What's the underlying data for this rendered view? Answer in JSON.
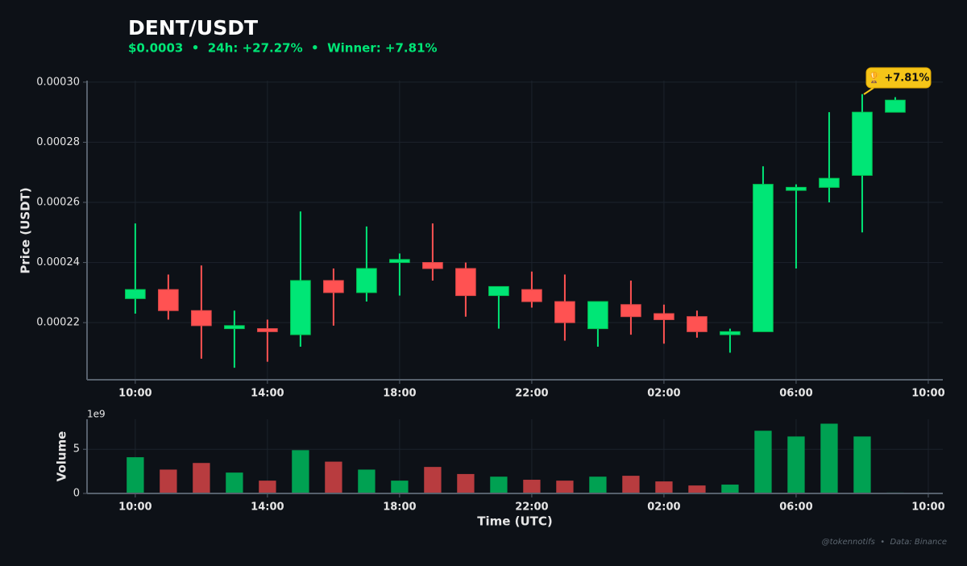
{
  "chart_data": [
    {
      "type": "candlestick",
      "title": "DENT/USDT",
      "subtitle": "$0.0003  •  24h: +27.27%  •  Winner: +7.81%",
      "y_label": "Price (USDT)",
      "annotation": "🏆 +7.81%",
      "x": [
        0,
        1,
        2,
        3,
        4,
        5,
        6,
        7,
        8,
        9,
        10,
        11,
        12,
        13,
        14,
        15,
        16,
        17,
        18,
        19,
        20,
        21,
        22,
        23
      ],
      "open": [
        0.000228,
        0.000231,
        0.000224,
        0.000218,
        0.000218,
        0.000216,
        0.000234,
        0.00023,
        0.00024,
        0.00024,
        0.000238,
        0.000229,
        0.000231,
        0.000227,
        0.000218,
        0.000226,
        0.000223,
        0.000222,
        0.000216,
        0.000217,
        0.000264,
        0.000265,
        0.000269,
        0.00029
      ],
      "high": [
        0.000253,
        0.000236,
        0.000239,
        0.000224,
        0.000221,
        0.000257,
        0.000238,
        0.000252,
        0.000243,
        0.000253,
        0.00024,
        0.000232,
        0.000237,
        0.000236,
        0.000227,
        0.000234,
        0.000226,
        0.000224,
        0.000218,
        0.000272,
        0.000266,
        0.00029,
        0.000296,
        0.000295
      ],
      "low": [
        0.000223,
        0.000221,
        0.000208,
        0.000205,
        0.000207,
        0.000212,
        0.000219,
        0.000227,
        0.000229,
        0.000234,
        0.000222,
        0.000218,
        0.000225,
        0.000214,
        0.000212,
        0.000216,
        0.000213,
        0.000215,
        0.00021,
        0.000217,
        0.000238,
        0.00026,
        0.00025,
        0.00029
      ],
      "close": [
        0.000231,
        0.000224,
        0.000219,
        0.000219,
        0.000217,
        0.000234,
        0.00023,
        0.000238,
        0.000241,
        0.000238,
        0.000229,
        0.000232,
        0.000227,
        0.00022,
        0.000227,
        0.000222,
        0.000221,
        0.000217,
        0.000217,
        0.000266,
        0.000265,
        0.000268,
        0.00029,
        0.000294
      ],
      "up_color": "#00e676",
      "down_color": "#ff5252",
      "xlim": [
        -1.46,
        24.44
      ],
      "xticks": [
        {
          "value": 0,
          "label": "10:00"
        },
        {
          "value": 4,
          "label": "14:00"
        },
        {
          "value": 8,
          "label": "18:00"
        },
        {
          "value": 12,
          "label": "22:00"
        },
        {
          "value": 16,
          "label": "02:00"
        },
        {
          "value": 20,
          "label": "06:00"
        },
        {
          "value": 24,
          "label": "10:00"
        }
      ],
      "ylim": [
        0.000201,
        0.0003005
      ],
      "yticks": [
        0.00022,
        0.00024,
        0.00026,
        0.00028,
        {
          "value": 0.0003,
          "label": "0.00030"
        }
      ],
      "grid": true
    },
    {
      "type": "bar",
      "x_label": "Time (UTC)",
      "y_label": "Volume",
      "offset_label": "1e9",
      "x": [
        0,
        1,
        2,
        3,
        4,
        5,
        6,
        7,
        8,
        9,
        10,
        11,
        12,
        13,
        14,
        15,
        16,
        17,
        18,
        19,
        20,
        21,
        22,
        23
      ],
      "values": [
        4.1,
        2.7,
        3.45,
        2.36,
        1.45,
        4.9,
        3.6,
        2.7,
        1.45,
        3.0,
        2.2,
        1.9,
        1.55,
        1.45,
        1.9,
        2.0,
        1.36,
        0.9,
        1.0,
        7.1,
        6.45,
        7.9,
        6.45,
        0.1
      ],
      "up_color": "#00a152",
      "down_color": "#b83c3f",
      "xlim": [
        -1.46,
        24.44
      ],
      "xticks": [
        {
          "value": 0,
          "label": "10:00"
        },
        {
          "value": 4,
          "label": "14:00"
        },
        {
          "value": 8,
          "label": "18:00"
        },
        {
          "value": 12,
          "label": "22:00"
        },
        {
          "value": 16,
          "label": "02:00"
        },
        {
          "value": 20,
          "label": "06:00"
        },
        {
          "value": 24,
          "label": "10:00"
        }
      ],
      "ylim": [
        0,
        8.4
      ],
      "yticks": [
        0,
        5
      ],
      "grid": true
    }
  ],
  "footer": "@tokennotifs  •  Data: Binance"
}
